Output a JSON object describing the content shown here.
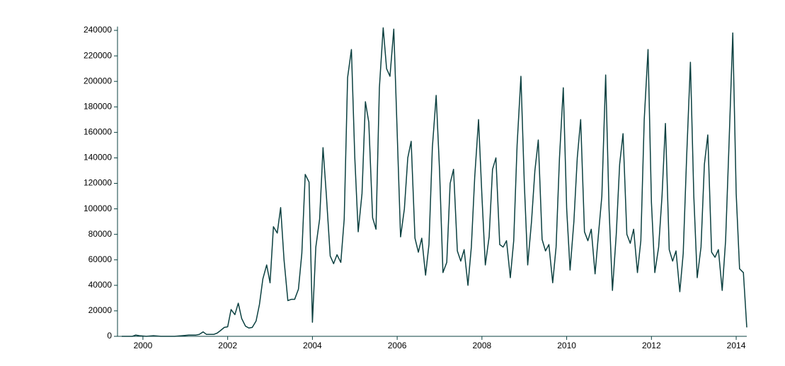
{
  "chart_data": {
    "type": "line",
    "x": [
      1999.5,
      1999.75,
      1999.83,
      1999.92,
      2000.08,
      2000.25,
      2000.42,
      2000.58,
      2000.75,
      2000.92,
      2001.08,
      2001.25,
      2001.33,
      2001.42,
      2001.5,
      2001.67,
      2001.75,
      2001.83,
      2001.92,
      2002.0,
      2002.08,
      2002.17,
      2002.25,
      2002.33,
      2002.42,
      2002.5,
      2002.58,
      2002.67,
      2002.75,
      2002.83,
      2002.92,
      2003.0,
      2003.08,
      2003.17,
      2003.25,
      2003.33,
      2003.42,
      2003.5,
      2003.58,
      2003.67,
      2003.75,
      2003.83,
      2003.92,
      2004.0,
      2004.08,
      2004.17,
      2004.25,
      2004.33,
      2004.42,
      2004.5,
      2004.58,
      2004.67,
      2004.75,
      2004.83,
      2004.92,
      2005.0,
      2005.08,
      2005.17,
      2005.25,
      2005.33,
      2005.42,
      2005.5,
      2005.58,
      2005.67,
      2005.75,
      2005.83,
      2005.92,
      2006.0,
      2006.08,
      2006.17,
      2006.25,
      2006.33,
      2006.42,
      2006.5,
      2006.58,
      2006.67,
      2006.75,
      2006.83,
      2006.92,
      2007.0,
      2007.08,
      2007.17,
      2007.25,
      2007.33,
      2007.42,
      2007.5,
      2007.58,
      2007.67,
      2007.75,
      2007.83,
      2007.92,
      2008.0,
      2008.08,
      2008.17,
      2008.25,
      2008.33,
      2008.42,
      2008.5,
      2008.58,
      2008.67,
      2008.75,
      2008.83,
      2008.92,
      2009.0,
      2009.08,
      2009.17,
      2009.25,
      2009.33,
      2009.42,
      2009.5,
      2009.58,
      2009.67,
      2009.75,
      2009.83,
      2009.92,
      2010.0,
      2010.08,
      2010.17,
      2010.25,
      2010.33,
      2010.42,
      2010.5,
      2010.58,
      2010.67,
      2010.75,
      2010.83,
      2010.92,
      2011.0,
      2011.08,
      2011.17,
      2011.25,
      2011.33,
      2011.42,
      2011.5,
      2011.58,
      2011.67,
      2011.75,
      2011.83,
      2011.92,
      2012.0,
      2012.08,
      2012.17,
      2012.25,
      2012.33,
      2012.42,
      2012.5,
      2012.58,
      2012.67,
      2012.75,
      2012.83,
      2012.92,
      2013.0,
      2013.08,
      2013.17,
      2013.25,
      2013.33,
      2013.42,
      2013.5,
      2013.58,
      2013.67,
      2013.75,
      2013.83,
      2013.92,
      2014.0,
      2014.08,
      2014.17,
      2014.25
    ],
    "values": [
      0,
      0,
      1000,
      500,
      0,
      500,
      0,
      0,
      0,
      500,
      1000,
      1000,
      1500,
      3500,
      1500,
      1500,
      2500,
      4500,
      7000,
      7500,
      21000,
      17000,
      26000,
      14000,
      8000,
      6500,
      7000,
      12000,
      25000,
      45000,
      56000,
      42000,
      86000,
      81000,
      101000,
      60000,
      28000,
      29000,
      29000,
      37000,
      65000,
      127000,
      121000,
      11000,
      70000,
      92000,
      148000,
      110000,
      63000,
      57000,
      64000,
      58000,
      92000,
      203000,
      225000,
      140000,
      82000,
      112000,
      184000,
      168000,
      93000,
      84000,
      195000,
      242000,
      210000,
      204000,
      241000,
      160000,
      78000,
      100000,
      140000,
      153000,
      77000,
      66000,
      77000,
      48000,
      72000,
      148000,
      189000,
      130000,
      50000,
      58000,
      120000,
      131000,
      67000,
      59000,
      68000,
      40000,
      70000,
      125000,
      170000,
      110000,
      56000,
      78000,
      131000,
      140000,
      72000,
      70000,
      75000,
      46000,
      75000,
      150000,
      204000,
      120000,
      56000,
      90000,
      130000,
      154000,
      76000,
      67000,
      72000,
      42000,
      70000,
      140000,
      195000,
      100000,
      52000,
      90000,
      140000,
      170000,
      82000,
      75000,
      84000,
      49000,
      80000,
      110000,
      205000,
      100000,
      36000,
      80000,
      135000,
      159000,
      80000,
      73000,
      84000,
      50000,
      75000,
      170000,
      225000,
      105000,
      50000,
      70000,
      110000,
      167000,
      68000,
      59000,
      67000,
      35000,
      65000,
      140000,
      215000,
      110000,
      46000,
      70000,
      135000,
      158000,
      66000,
      62000,
      68000,
      36000,
      75000,
      150000,
      238000,
      112000,
      53000,
      50000,
      7000
    ],
    "color": "#0b4040",
    "xlim": [
      1999.4,
      2014.25
    ],
    "xticks": [
      2000,
      2002,
      2004,
      2006,
      2008,
      2010,
      2012,
      2014
    ],
    "ylim": [
      0,
      243000
    ],
    "yticks": [
      0,
      20000,
      40000,
      60000,
      80000,
      100000,
      120000,
      140000,
      160000,
      180000,
      200000,
      220000,
      240000
    ]
  }
}
